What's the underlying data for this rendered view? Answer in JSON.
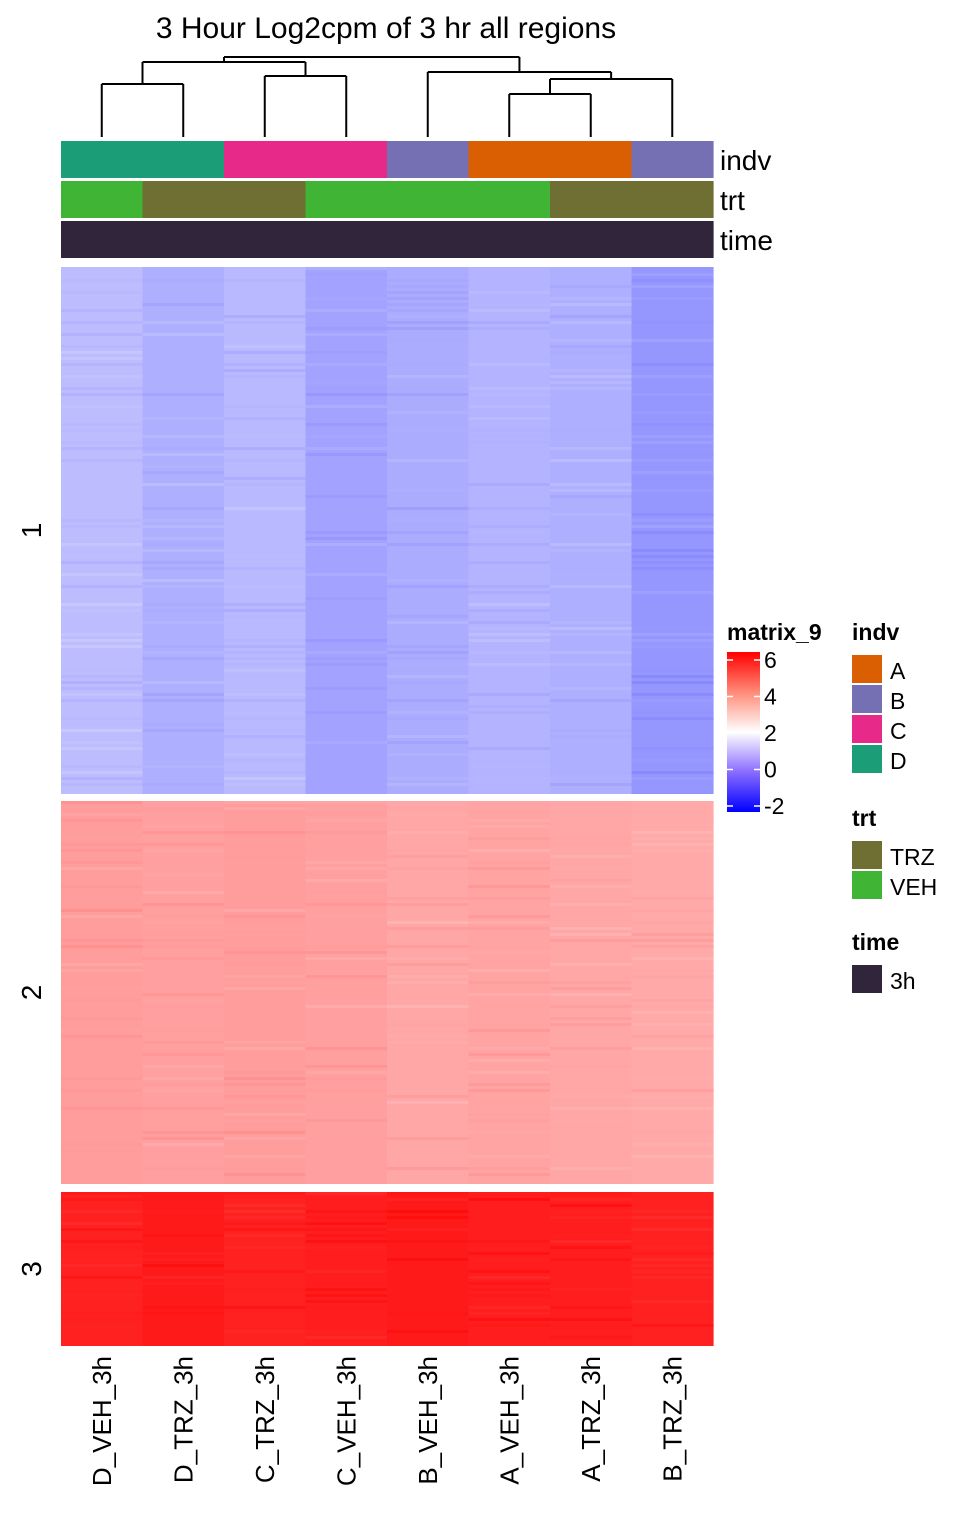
{
  "chart_data": {
    "type": "heatmap",
    "title": "3 Hour Log2cpm of 3 hr all regions",
    "columns": [
      "D_VEH_3h",
      "D_TRZ_3h",
      "C_TRZ_3h",
      "C_VEH_3h",
      "B_VEH_3h",
      "A_VEH_3h",
      "A_TRZ_3h",
      "B_TRZ_3h"
    ],
    "row_slices": [
      {
        "label": "1",
        "mean_values": [
          0.95,
          0.75,
          0.9,
          0.55,
          0.7,
          0.8,
          0.75,
          0.35
        ]
      },
      {
        "label": "2",
        "mean_values": [
          3.55,
          3.5,
          3.55,
          3.5,
          3.4,
          3.45,
          3.4,
          3.35
        ]
      },
      {
        "label": "3",
        "mean_values": [
          5.5,
          5.6,
          5.5,
          5.55,
          5.6,
          5.55,
          5.55,
          5.5
        ]
      }
    ],
    "annotations": [
      {
        "name": "indv",
        "values": [
          "D",
          "D",
          "C",
          "C",
          "B",
          "A",
          "A",
          "B"
        ]
      },
      {
        "name": "trt",
        "values": [
          "VEH",
          "TRZ",
          "TRZ",
          "VEH",
          "VEH",
          "VEH",
          "TRZ",
          "TRZ"
        ]
      },
      {
        "name": "time",
        "values": [
          "3h",
          "3h",
          "3h",
          "3h",
          "3h",
          "3h",
          "3h",
          "3h"
        ]
      }
    ],
    "dendrogram": "columns clustered: ((D_VEH_3h, D_TRZ_3h), (C_TRZ_3h, C_VEH_3h)), (B_VEH_3h, ((A_VEH_3h, A_TRZ_3h), B_TRZ_3h))",
    "color_scale": {
      "name": "matrix_9",
      "stops": [
        {
          "value": -2,
          "color": "#0000ff"
        },
        {
          "value": 2,
          "color": "#ffffff"
        },
        {
          "value": 6,
          "color": "#ff0000"
        }
      ],
      "ticks": [
        "6",
        "4",
        "2",
        "0",
        "-2"
      ]
    },
    "legends": [
      {
        "title": "indv",
        "items": [
          {
            "label": "A",
            "color": "#d95f02"
          },
          {
            "label": "B",
            "color": "#7570b3"
          },
          {
            "label": "C",
            "color": "#e7298a"
          },
          {
            "label": "D",
            "color": "#1b9e77"
          }
        ]
      },
      {
        "title": "trt",
        "items": [
          {
            "label": "TRZ",
            "color": "#6f6f34"
          },
          {
            "label": "VEH",
            "color": "#40b535"
          }
        ]
      },
      {
        "title": "time",
        "items": [
          {
            "label": "3h",
            "color": "#30253a"
          }
        ]
      }
    ]
  }
}
